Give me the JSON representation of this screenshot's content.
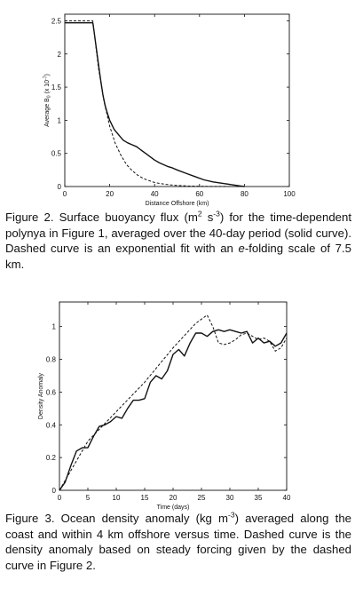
{
  "chart_data": [
    {
      "type": "line",
      "xlabel": "Distance Offshore (km)",
      "ylabel_main": "Average B",
      "ylabel_sub": "0",
      "ylabel_scale": "(x 10",
      "ylabel_scale_exp": "-7",
      "ylabel_scale_close": ")",
      "xlim": [
        0,
        100
      ],
      "ylim": [
        0,
        2.6
      ],
      "xticks": [
        "0",
        "20",
        "40",
        "60",
        "80",
        "100"
      ],
      "yticks": [
        "0",
        "0.5",
        "1",
        "1.5",
        "2",
        "2.5"
      ],
      "series": [
        {
          "style": "solid",
          "x": [
            0,
            5,
            10,
            12.5,
            13,
            14,
            15,
            16,
            17,
            18,
            19,
            20,
            21,
            22,
            24,
            26,
            28,
            30,
            32,
            34,
            36,
            38,
            40,
            42,
            44,
            46,
            48,
            50,
            54,
            58,
            62,
            66,
            70,
            74,
            78,
            80
          ],
          "y": [
            2.47,
            2.47,
            2.47,
            2.47,
            2.35,
            2.1,
            1.85,
            1.6,
            1.38,
            1.22,
            1.1,
            1.0,
            0.93,
            0.86,
            0.78,
            0.7,
            0.66,
            0.63,
            0.6,
            0.55,
            0.5,
            0.45,
            0.4,
            0.36,
            0.33,
            0.3,
            0.28,
            0.25,
            0.2,
            0.15,
            0.1,
            0.07,
            0.05,
            0.03,
            0.01,
            0.0
          ]
        },
        {
          "style": "dashed",
          "x": [
            0,
            5,
            10,
            12.5,
            15,
            17.5,
            20,
            22.5,
            25,
            27.5,
            30,
            32.5,
            35,
            37.5,
            40,
            42.5,
            45,
            47.5,
            50,
            55,
            60,
            65,
            70,
            75,
            80
          ],
          "y": [
            2.5,
            2.5,
            2.5,
            2.5,
            1.79,
            1.28,
            0.91,
            0.65,
            0.47,
            0.33,
            0.24,
            0.17,
            0.12,
            0.09,
            0.06,
            0.045,
            0.032,
            0.023,
            0.016,
            0.008,
            0.004,
            0.002,
            0.001,
            0.0005,
            0.0
          ]
        }
      ]
    },
    {
      "type": "line",
      "xlabel": "Time (days)",
      "ylabel": "Density Anomaly",
      "xlim": [
        0,
        40
      ],
      "ylim": [
        0,
        1.15
      ],
      "xticks": [
        "0",
        "5",
        "10",
        "15",
        "20",
        "25",
        "30",
        "35",
        "40"
      ],
      "yticks": [
        "0",
        "0.2",
        "0.4",
        "0.6",
        "0.8",
        "1"
      ],
      "series": [
        {
          "style": "solid",
          "x": [
            0,
            1,
            2,
            3,
            4,
            5,
            6,
            7,
            8,
            9,
            10,
            11,
            12,
            13,
            14,
            15,
            16,
            17,
            18,
            19,
            20,
            21,
            22,
            23,
            24,
            25,
            26,
            27,
            28,
            29,
            30,
            31,
            32,
            33,
            34,
            35,
            36,
            37,
            38,
            39,
            40
          ],
          "y": [
            0.0,
            0.05,
            0.15,
            0.24,
            0.26,
            0.26,
            0.33,
            0.39,
            0.4,
            0.42,
            0.45,
            0.44,
            0.5,
            0.55,
            0.55,
            0.56,
            0.66,
            0.7,
            0.68,
            0.73,
            0.83,
            0.86,
            0.82,
            0.9,
            0.96,
            0.96,
            0.94,
            0.97,
            0.98,
            0.97,
            0.98,
            0.97,
            0.96,
            0.97,
            0.9,
            0.93,
            0.9,
            0.91,
            0.88,
            0.9,
            0.96
          ]
        },
        {
          "style": "dashed",
          "x": [
            0,
            5,
            10,
            15,
            20,
            24,
            26,
            27,
            28,
            29,
            30,
            31,
            32,
            33,
            34,
            35,
            36,
            37,
            38,
            39,
            40
          ],
          "y": [
            0.0,
            0.3,
            0.48,
            0.66,
            0.87,
            1.02,
            1.07,
            1.0,
            0.9,
            0.89,
            0.9,
            0.92,
            0.95,
            0.96,
            0.94,
            0.92,
            0.93,
            0.91,
            0.85,
            0.87,
            0.93
          ]
        }
      ]
    }
  ],
  "captions": {
    "fig2": {
      "p1": "Figure 2. Surface buoyancy flux (m",
      "sup1": "2",
      "p2": " s",
      "sup2": "-3",
      "p3": ") for the time-dependent polynya in Figure 1, averaged over the 40-day period (solid curve). Dashed curve is an exponential fit with an ",
      "em": "e",
      "p4": "-folding scale of 7.5 km."
    },
    "fig3": {
      "p1": "Figure 3. Ocean density anomaly (kg m",
      "sup1": "-3",
      "p2": ") averaged along the coast and within 4 km offshore versus time. Dashed curve is the density anomaly based on steady forcing given by the dashed curve in Figure 2."
    }
  }
}
